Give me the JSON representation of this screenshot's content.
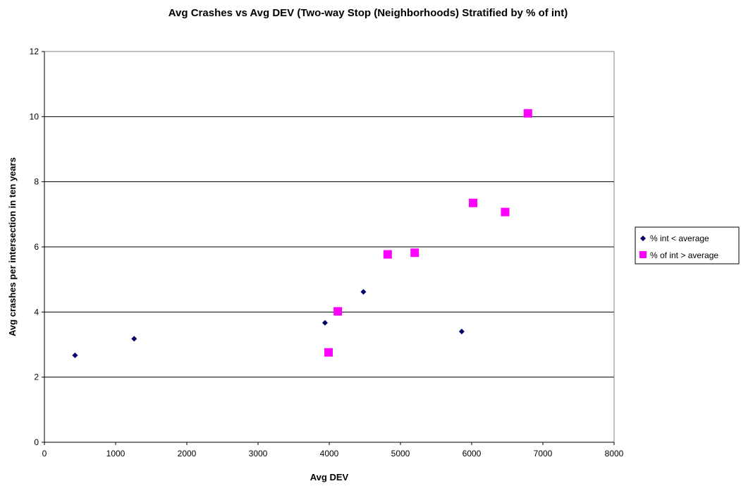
{
  "chart_data": {
    "type": "scatter",
    "title": "Avg Crashes vs Avg DEV (Two-way Stop (Neighborhoods) Stratified by % of int)",
    "xlabel": "Avg DEV",
    "ylabel": "Avg crashes per intersection in ten years",
    "xlim": [
      0,
      8000
    ],
    "ylim": [
      0,
      12
    ],
    "x_ticks": [
      "0",
      "1000",
      "2000",
      "3000",
      "4000",
      "5000",
      "6000",
      "7000",
      "8000"
    ],
    "y_ticks": [
      "0",
      "2",
      "4",
      "6",
      "8",
      "10",
      "12"
    ],
    "grid": "horizontal major gridlines",
    "legend_position": "right",
    "series": [
      {
        "name": "% int < average",
        "marker": "diamond",
        "color": "#000066",
        "points": [
          {
            "x": 430,
            "y": 2.67
          },
          {
            "x": 1260,
            "y": 3.18
          },
          {
            "x": 3940,
            "y": 3.67
          },
          {
            "x": 4480,
            "y": 4.62
          },
          {
            "x": 5860,
            "y": 3.4
          }
        ]
      },
      {
        "name": "% of int > average",
        "marker": "square",
        "color": "#ff00ff",
        "points": [
          {
            "x": 3990,
            "y": 2.76
          },
          {
            "x": 4120,
            "y": 4.02
          },
          {
            "x": 4820,
            "y": 5.77
          },
          {
            "x": 5200,
            "y": 5.82
          },
          {
            "x": 6020,
            "y": 7.35
          },
          {
            "x": 6470,
            "y": 7.07
          },
          {
            "x": 6790,
            "y": 10.1
          }
        ]
      }
    ]
  }
}
